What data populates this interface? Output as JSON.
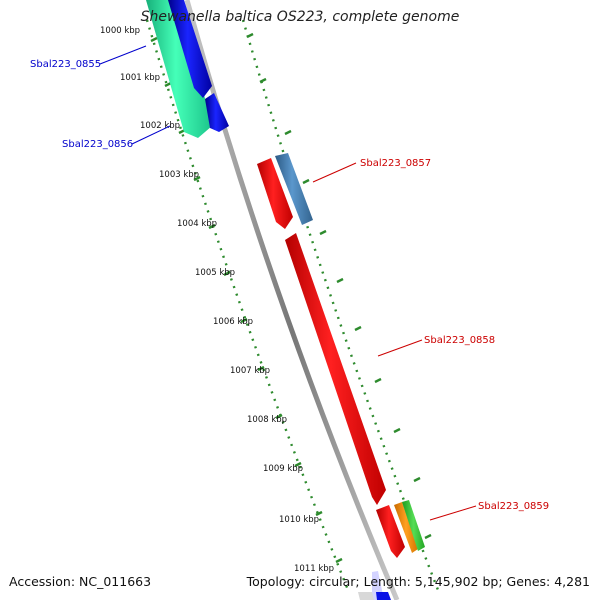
{
  "title": "Shewanella baltica OS223, complete genome",
  "footer": {
    "accession": "Accession: NC_011663",
    "stats": "Topology: circular; Length: 5,145,902 bp; Genes: 4,281"
  },
  "colors": {
    "backbone": "#8a8a8a",
    "ruler": "#2e8b2e",
    "gene_red": "#ff1a1a",
    "gene_blue": "#0a12e6",
    "gene_steel": "#4682b4",
    "gene_teal": "#2ee8a0",
    "gene_orange": "#ff8c00",
    "gene_green": "#3cc43c",
    "label_blue": "#0000cc",
    "label_red": "#cc0000"
  },
  "ticks": [
    "1000 kbp",
    "1001 kbp",
    "1002 kbp",
    "1003 kbp",
    "1004 kbp",
    "1005 kbp",
    "1006 kbp",
    "1007 kbp",
    "1008 kbp",
    "1009 kbp",
    "1010 kbp",
    "1011 kbp"
  ],
  "gene_labels": [
    {
      "text": "Sbal223_0855",
      "color": "#0000cc"
    },
    {
      "text": "Sbal223_0856",
      "color": "#0000cc"
    },
    {
      "text": "Sbal223_0857",
      "color": "#cc0000"
    },
    {
      "text": "Sbal223_0858",
      "color": "#cc0000"
    },
    {
      "text": "Sbal223_0859",
      "color": "#cc0000"
    }
  ]
}
